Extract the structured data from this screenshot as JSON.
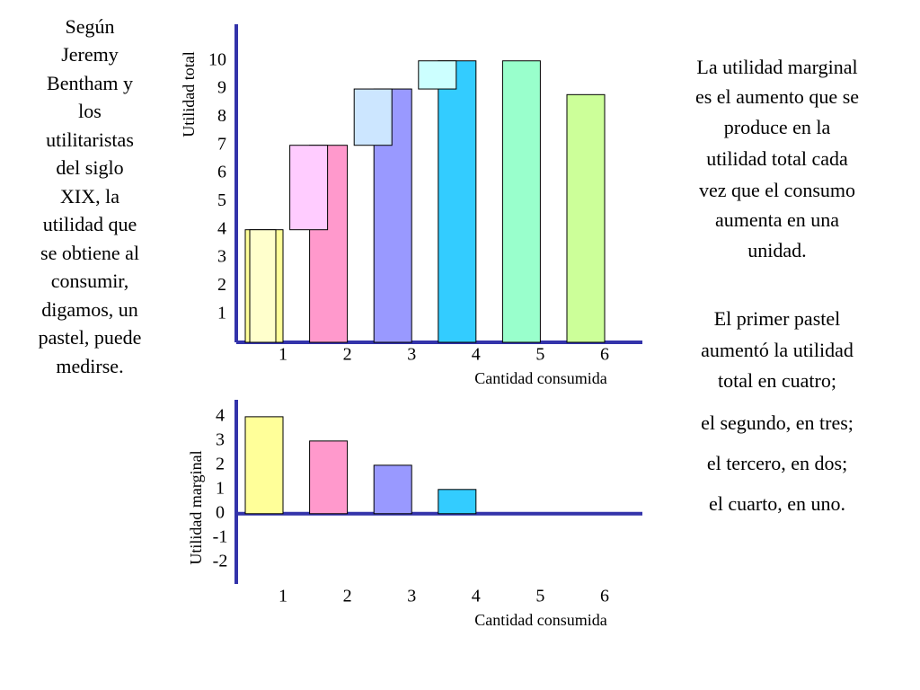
{
  "left_text": [
    "Según",
    "Jeremy",
    "Bentham y",
    "los",
    "utilitaristas",
    "del siglo",
    "XIX, la",
    "utilidad que",
    "se obtiene al",
    "consumir,",
    "digamos, un",
    "pastel, puede",
    "medirse."
  ],
  "right_text": [
    "La utilidad marginal",
    "es el aumento que se",
    "produce en la",
    "utilidad total cada",
    "vez que el consumo",
    "aumenta en una",
    "unidad.",
    "El primer pastel",
    "aumentó la utilidad",
    "total en cuatro;",
    "el segundo, en tres;",
    "el tercero, en dos;",
    "el cuarto, en uno."
  ],
  "chart_data": [
    {
      "type": "bar",
      "y_label": "Utilidad total",
      "x_label": "Cantidad consumida",
      "categories": [
        "1",
        "2",
        "3",
        "4",
        "5",
        "6"
      ],
      "values": [
        4,
        7,
        9,
        10,
        10,
        8.8
      ],
      "colors": [
        "#ffff99",
        "#ff99cc",
        "#9999ff",
        "#33ccff",
        "#99ffcc",
        "#ccff99"
      ],
      "overlay_colors": [
        "#ffffcc",
        "#ffccff",
        "#cce6ff",
        "#ccffff"
      ],
      "ylim": [
        0,
        11.3
      ],
      "yticks": [
        1,
        2,
        3,
        4,
        5,
        6,
        7,
        8,
        9,
        10
      ],
      "grid": false
    },
    {
      "type": "bar",
      "y_label": "Utilidad marginal",
      "x_label": "Cantidad consumida",
      "categories": [
        "1",
        "2",
        "3",
        "4",
        "5",
        "6"
      ],
      "values": [
        4,
        3,
        2,
        1,
        null,
        null
      ],
      "colors": [
        "#ffff99",
        "#ff99cc",
        "#9999ff",
        "#33ccff",
        "#99ffcc",
        "#ccff99"
      ],
      "ylim": [
        -2.9,
        4.7
      ],
      "yticks": [
        4,
        3,
        2,
        1,
        0,
        -1,
        -2
      ],
      "grid": false
    }
  ]
}
